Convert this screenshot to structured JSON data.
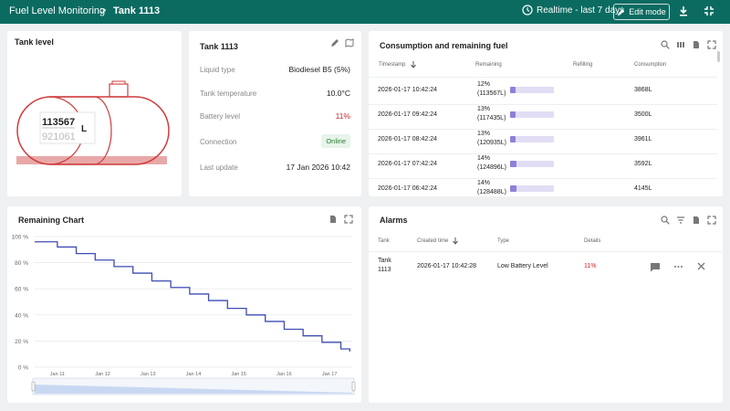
{
  "header": {
    "dashboard": "Fuel Level Monitoring",
    "separator": ">",
    "state": "Tank 1113",
    "timewindow": "Realtime - last 7 days",
    "edit_label": "Edit mode"
  },
  "tank_level": {
    "title": "Tank level",
    "value": "113567",
    "capacity": "921061",
    "unit": "L"
  },
  "tank_info": {
    "title": "Tank 1113",
    "rows": [
      {
        "label": "Liquid type",
        "value": "Biodiesel B5 (5%)"
      },
      {
        "label": "Tank temperature",
        "value": "10.0°C"
      },
      {
        "label": "Battery level",
        "value": "11%"
      },
      {
        "label": "Connection",
        "value": "Online"
      },
      {
        "label": "Last update",
        "value": "17 Jan 2026 10:42"
      }
    ]
  },
  "consumption": {
    "title": "Consumption and remaining fuel",
    "columns": [
      "Timestamp",
      "Remaining",
      "Refilling",
      "Consumption"
    ],
    "rows": [
      {
        "timestamp": "2026-01-17 10:42:24",
        "pct": "12%",
        "liters": "(113567L)",
        "fraction": 0.12,
        "refilling": "",
        "consumption": "3868L"
      },
      {
        "timestamp": "2026-01-17 09:42:24",
        "pct": "13%",
        "liters": "(117435L)",
        "fraction": 0.13,
        "refilling": "",
        "consumption": "3500L"
      },
      {
        "timestamp": "2026-01-17 08:42:24",
        "pct": "13%",
        "liters": "(120935L)",
        "fraction": 0.13,
        "refilling": "",
        "consumption": "3961L"
      },
      {
        "timestamp": "2026-01-17 07:42:24",
        "pct": "14%",
        "liters": "(124896L)",
        "fraction": 0.14,
        "refilling": "",
        "consumption": "3592L"
      },
      {
        "timestamp": "2026-01-17 06:42:24",
        "pct": "14%",
        "liters": "(128488L)",
        "fraction": 0.14,
        "refilling": "",
        "consumption": "4145L"
      }
    ]
  },
  "remaining_chart": {
    "title": "Remaining Chart"
  },
  "chart_data": {
    "type": "line",
    "title": "Remaining Chart",
    "xlabel": "",
    "ylabel": "",
    "ylim": [
      0,
      100
    ],
    "yticks": [
      "100 %",
      "80 %",
      "60 %",
      "40 %",
      "20 %",
      "0 %"
    ],
    "xticks": [
      "Jan 11",
      "Jan 12",
      "Jan 13",
      "Jan 14",
      "Jan 15",
      "Jan 16",
      "Jan 17"
    ],
    "line_color": "#3f4cb5",
    "series": [
      {
        "x": [
          "2026-01-10 12:00",
          "2026-01-11 00:00",
          "2026-01-11 10:00",
          "2026-01-11 20:00",
          "2026-01-12 06:00",
          "2026-01-12 16:00",
          "2026-01-13 02:00",
          "2026-01-13 12:00",
          "2026-01-13 22:00",
          "2026-01-14 08:00",
          "2026-01-14 18:00",
          "2026-01-15 04:00",
          "2026-01-15 14:00",
          "2026-01-16 00:00",
          "2026-01-16 10:00",
          "2026-01-16 20:00",
          "2026-01-17 06:00",
          "2026-01-17 10:42"
        ],
        "y": [
          96,
          92,
          87,
          82,
          77,
          72,
          66,
          61,
          56,
          51,
          45,
          40,
          35,
          29,
          24,
          19,
          14,
          12
        ]
      }
    ]
  },
  "alarms": {
    "title": "Alarms",
    "columns": [
      "Tank",
      "Created time",
      "Type",
      "Details"
    ],
    "rows": [
      {
        "tank_line1": "Tank",
        "tank_line2": "1113",
        "created": "2026-01-17 10:42:28",
        "type": "Low Battery Level",
        "details": "11%"
      }
    ]
  },
  "colors": {
    "header_bg": "#0b6b61",
    "tank_outline": "#d03c3c",
    "warning_text": "#c62828",
    "online_bg": "#e6f4ea",
    "online_text": "#2e7d32",
    "bar_fill": "#8d80d9",
    "bar_bg": "#e2ddf5"
  }
}
